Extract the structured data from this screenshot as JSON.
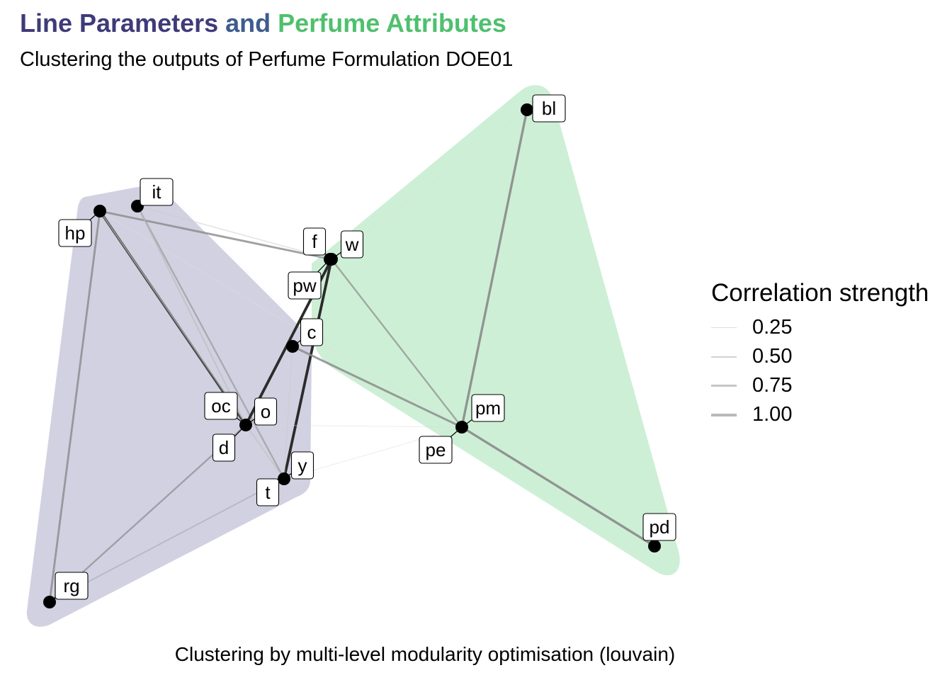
{
  "title": {
    "part1": "Line Parameters",
    "part2": " and ",
    "part3": "Perfume Attributes",
    "colors": {
      "part1": "#3e3b7a",
      "part2": "#3e5c8e",
      "part3": "#4fc06d"
    }
  },
  "subtitle": "Clustering the outputs of Perfume Formulation DOE01",
  "caption": "Clustering by multi-level modularity optimisation (louvain)",
  "legend": {
    "title": "Correlation strength",
    "items": [
      {
        "label": "0.25",
        "value": 0.25
      },
      {
        "label": "0.50",
        "value": 0.5
      },
      {
        "label": "0.75",
        "value": 0.75
      },
      {
        "label": "1.00",
        "value": 1.0
      }
    ]
  },
  "clusters": [
    {
      "name": "Line Parameters",
      "color": "#9a98be",
      "members": [
        "hp",
        "it",
        "oc",
        "o",
        "d",
        "t",
        "y",
        "rg",
        "c",
        "pw"
      ]
    },
    {
      "name": "Perfume Attributes",
      "color": "#90dba3",
      "members": [
        "bl",
        "f",
        "w",
        "pm",
        "pe",
        "pd"
      ]
    }
  ],
  "nodes": [
    {
      "id": "it",
      "label": "it"
    },
    {
      "id": "hp",
      "label": "hp"
    },
    {
      "id": "f",
      "label": "f"
    },
    {
      "id": "w",
      "label": "w"
    },
    {
      "id": "pw",
      "label": "pw"
    },
    {
      "id": "c",
      "label": "c"
    },
    {
      "id": "oc",
      "label": "oc"
    },
    {
      "id": "o",
      "label": "o"
    },
    {
      "id": "d",
      "label": "d"
    },
    {
      "id": "y",
      "label": "y"
    },
    {
      "id": "t",
      "label": "t"
    },
    {
      "id": "rg",
      "label": "rg"
    },
    {
      "id": "bl",
      "label": "bl"
    },
    {
      "id": "pm",
      "label": "pm"
    },
    {
      "id": "pe",
      "label": "pe"
    },
    {
      "id": "pd",
      "label": "pd"
    }
  ],
  "edges": [
    {
      "source": "hp",
      "target": "o",
      "weight": 0.95,
      "color": "#444444"
    },
    {
      "source": "hp",
      "target": "rg",
      "weight": 0.7,
      "color": "#8a8a8a"
    },
    {
      "source": "hp",
      "target": "w",
      "weight": 0.7,
      "color": "#8a8a8a"
    },
    {
      "source": "hp",
      "target": "y",
      "weight": 0.35,
      "color": "#cfcfcf"
    },
    {
      "source": "hp",
      "target": "pm",
      "weight": 0.2,
      "color": "#dddddd"
    },
    {
      "source": "it",
      "target": "y",
      "weight": 0.55,
      "color": "#9a9a9a"
    },
    {
      "source": "it",
      "target": "o",
      "weight": 0.45,
      "color": "#bbbbbb"
    },
    {
      "source": "it",
      "target": "w",
      "weight": 0.3,
      "color": "#cccccc"
    },
    {
      "source": "w",
      "target": "o",
      "weight": 1.0,
      "color": "#2b2b2b"
    },
    {
      "source": "w",
      "target": "y",
      "weight": 1.0,
      "color": "#2b2b2b"
    },
    {
      "source": "w",
      "target": "pm",
      "weight": 0.55,
      "color": "#8a8a8a"
    },
    {
      "source": "w",
      "target": "bl",
      "weight": 0.15,
      "color": "#dddddd"
    },
    {
      "source": "c",
      "target": "pm",
      "weight": 0.75,
      "color": "#8a8a8a"
    },
    {
      "source": "c",
      "target": "y",
      "weight": 0.3,
      "color": "#cccccc"
    },
    {
      "source": "pm",
      "target": "bl",
      "weight": 0.85,
      "color": "#8a8a8a"
    },
    {
      "source": "pm",
      "target": "pd",
      "weight": 0.85,
      "color": "#8a8a8a"
    },
    {
      "source": "o",
      "target": "pm",
      "weight": 0.15,
      "color": "#d6d6d6"
    },
    {
      "source": "y",
      "target": "pm",
      "weight": 0.15,
      "color": "#d6d6d6"
    },
    {
      "source": "o",
      "target": "rg",
      "weight": 0.55,
      "color": "#8a8a8a"
    },
    {
      "source": "y",
      "target": "rg",
      "weight": 0.4,
      "color": "#aaaaaa"
    },
    {
      "source": "o",
      "target": "y",
      "weight": 0.3,
      "color": "#bbbbbb"
    }
  ]
}
